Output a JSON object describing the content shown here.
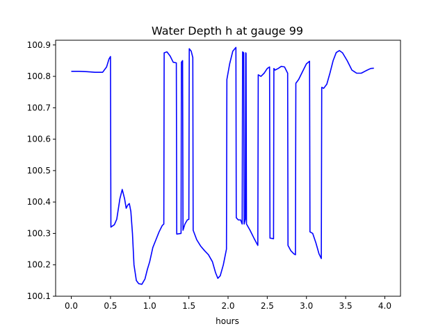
{
  "chart_data": {
    "type": "line",
    "title": "Water Depth h at gauge 99",
    "xlabel": "hours",
    "ylabel": "",
    "xlim": [
      -0.2,
      4.2
    ],
    "ylim": [
      100.1,
      100.915
    ],
    "grid": false,
    "xticks": [
      0.0,
      0.5,
      1.0,
      1.5,
      2.0,
      2.5,
      3.0,
      3.5,
      4.0
    ],
    "xtick_labels": [
      "0.0",
      "0.5",
      "1.0",
      "1.5",
      "2.0",
      "2.5",
      "3.0",
      "3.5",
      "4.0"
    ],
    "yticks": [
      100.1,
      100.2,
      100.3,
      100.4,
      100.5,
      100.6,
      100.7,
      100.8,
      100.9
    ],
    "ytick_labels": [
      "100.1",
      "100.2",
      "100.3",
      "100.4",
      "100.5",
      "100.6",
      "100.7",
      "100.8",
      "100.9"
    ],
    "series": [
      {
        "color": "#0000ff",
        "points": [
          [
            0.0,
            100.816
          ],
          [
            0.1,
            100.816
          ],
          [
            0.2,
            100.815
          ],
          [
            0.3,
            100.813
          ],
          [
            0.4,
            100.813
          ],
          [
            0.45,
            100.83
          ],
          [
            0.48,
            100.855
          ],
          [
            0.5,
            100.863
          ],
          [
            0.505,
            100.32
          ],
          [
            0.55,
            100.328
          ],
          [
            0.58,
            100.345
          ],
          [
            0.62,
            100.41
          ],
          [
            0.65,
            100.44
          ],
          [
            0.68,
            100.41
          ],
          [
            0.7,
            100.38
          ],
          [
            0.72,
            100.39
          ],
          [
            0.74,
            100.395
          ],
          [
            0.76,
            100.37
          ],
          [
            0.78,
            100.3
          ],
          [
            0.8,
            100.2
          ],
          [
            0.83,
            100.15
          ],
          [
            0.86,
            100.14
          ],
          [
            0.9,
            100.138
          ],
          [
            0.94,
            100.155
          ],
          [
            0.97,
            100.185
          ],
          [
            1.0,
            100.21
          ],
          [
            1.04,
            100.255
          ],
          [
            1.08,
            100.28
          ],
          [
            1.12,
            100.305
          ],
          [
            1.16,
            100.325
          ],
          [
            1.18,
            100.33
          ],
          [
            1.185,
            100.875
          ],
          [
            1.22,
            100.878
          ],
          [
            1.26,
            100.865
          ],
          [
            1.3,
            100.845
          ],
          [
            1.34,
            100.843
          ],
          [
            1.345,
            100.298
          ],
          [
            1.4,
            100.3
          ],
          [
            1.405,
            100.845
          ],
          [
            1.42,
            100.85
          ],
          [
            1.425,
            100.31
          ],
          [
            1.45,
            100.33
          ],
          [
            1.48,
            100.343
          ],
          [
            1.5,
            100.345
          ],
          [
            1.505,
            100.888
          ],
          [
            1.53,
            100.88
          ],
          [
            1.55,
            100.86
          ],
          [
            1.555,
            100.31
          ],
          [
            1.6,
            100.28
          ],
          [
            1.65,
            100.26
          ],
          [
            1.7,
            100.245
          ],
          [
            1.75,
            100.232
          ],
          [
            1.8,
            100.21
          ],
          [
            1.84,
            100.175
          ],
          [
            1.87,
            100.157
          ],
          [
            1.9,
            100.165
          ],
          [
            1.94,
            100.2
          ],
          [
            1.98,
            100.25
          ],
          [
            1.985,
            100.79
          ],
          [
            2.02,
            100.84
          ],
          [
            2.06,
            100.88
          ],
          [
            2.1,
            100.892
          ],
          [
            2.105,
            100.35
          ],
          [
            2.13,
            100.343
          ],
          [
            2.16,
            100.343
          ],
          [
            2.18,
            100.33
          ],
          [
            2.185,
            100.878
          ],
          [
            2.2,
            100.875
          ],
          [
            2.205,
            100.33
          ],
          [
            2.22,
            100.345
          ],
          [
            2.225,
            100.875
          ],
          [
            2.23,
            100.873
          ],
          [
            2.235,
            100.33
          ],
          [
            2.28,
            100.31
          ],
          [
            2.33,
            100.285
          ],
          [
            2.38,
            100.262
          ],
          [
            2.385,
            100.805
          ],
          [
            2.42,
            100.8
          ],
          [
            2.46,
            100.81
          ],
          [
            2.5,
            100.825
          ],
          [
            2.53,
            100.83
          ],
          [
            2.535,
            100.285
          ],
          [
            2.58,
            100.283
          ],
          [
            2.585,
            100.825
          ],
          [
            2.6,
            100.82
          ],
          [
            2.64,
            100.825
          ],
          [
            2.68,
            100.832
          ],
          [
            2.72,
            100.83
          ],
          [
            2.76,
            100.81
          ],
          [
            2.765,
            100.262
          ],
          [
            2.8,
            100.245
          ],
          [
            2.84,
            100.235
          ],
          [
            2.86,
            100.232
          ],
          [
            2.865,
            100.778
          ],
          [
            2.9,
            100.79
          ],
          [
            2.96,
            100.82
          ],
          [
            3.0,
            100.84
          ],
          [
            3.04,
            100.848
          ],
          [
            3.045,
            100.305
          ],
          [
            3.08,
            100.3
          ],
          [
            3.12,
            100.27
          ],
          [
            3.16,
            100.235
          ],
          [
            3.19,
            100.22
          ],
          [
            3.195,
            100.765
          ],
          [
            3.22,
            100.762
          ],
          [
            3.26,
            100.775
          ],
          [
            3.3,
            100.81
          ],
          [
            3.34,
            100.85
          ],
          [
            3.38,
            100.876
          ],
          [
            3.42,
            100.882
          ],
          [
            3.46,
            100.875
          ],
          [
            3.52,
            100.85
          ],
          [
            3.58,
            100.82
          ],
          [
            3.64,
            100.81
          ],
          [
            3.7,
            100.81
          ],
          [
            3.76,
            100.818
          ],
          [
            3.82,
            100.825
          ],
          [
            3.86,
            100.826
          ]
        ]
      }
    ]
  }
}
